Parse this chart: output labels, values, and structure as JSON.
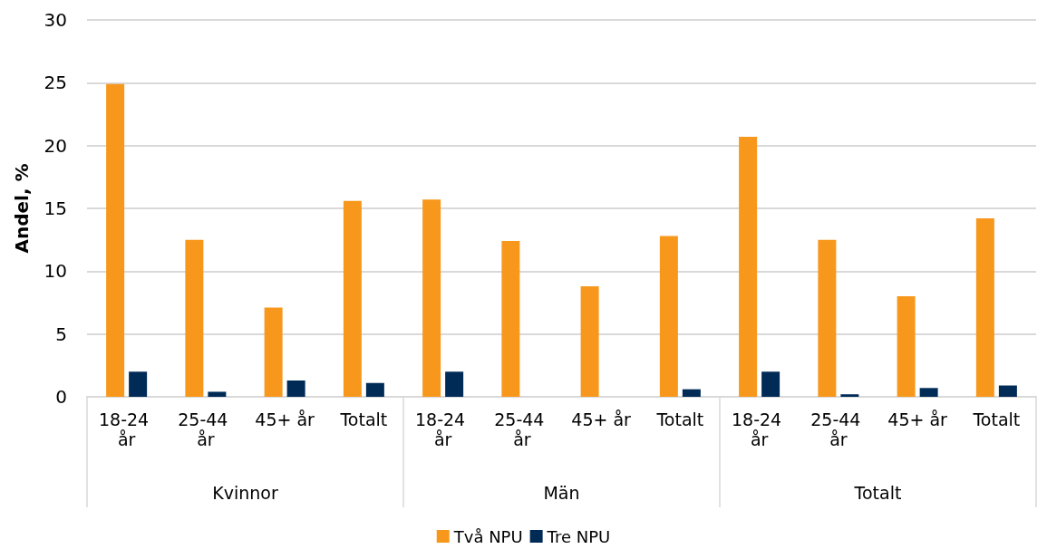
{
  "chart_data": {
    "type": "bar",
    "ylabel": "Andel, %",
    "categories": [
      "18-24 år",
      "25-44 år",
      "45+ år",
      "Totalt",
      "18-24 år",
      "25-44 år",
      "45+ år",
      "Totalt",
      "18-24 år",
      "25-44 år",
      "45+ år",
      "Totalt"
    ],
    "annotations": [
      "Kvinnor",
      "Män",
      "Totalt"
    ],
    "series": [
      {
        "name": "Två NPU",
        "color": "#f7981d",
        "values": [
          24.9,
          12.5,
          7.1,
          15.6,
          15.7,
          12.4,
          8.8,
          12.8,
          20.7,
          12.5,
          8.0,
          14.2
        ]
      },
      {
        "name": "Tre NPU",
        "color": "#002b57",
        "values": [
          2.0,
          0.4,
          1.3,
          1.1,
          2.0,
          null,
          null,
          0.6,
          2.0,
          0.2,
          0.7,
          0.9
        ]
      }
    ],
    "ylim": [
      0,
      30
    ],
    "yticks": [
      0,
      5,
      10,
      15,
      20,
      25,
      30
    ],
    "grid": "y",
    "legend": "bottom"
  }
}
